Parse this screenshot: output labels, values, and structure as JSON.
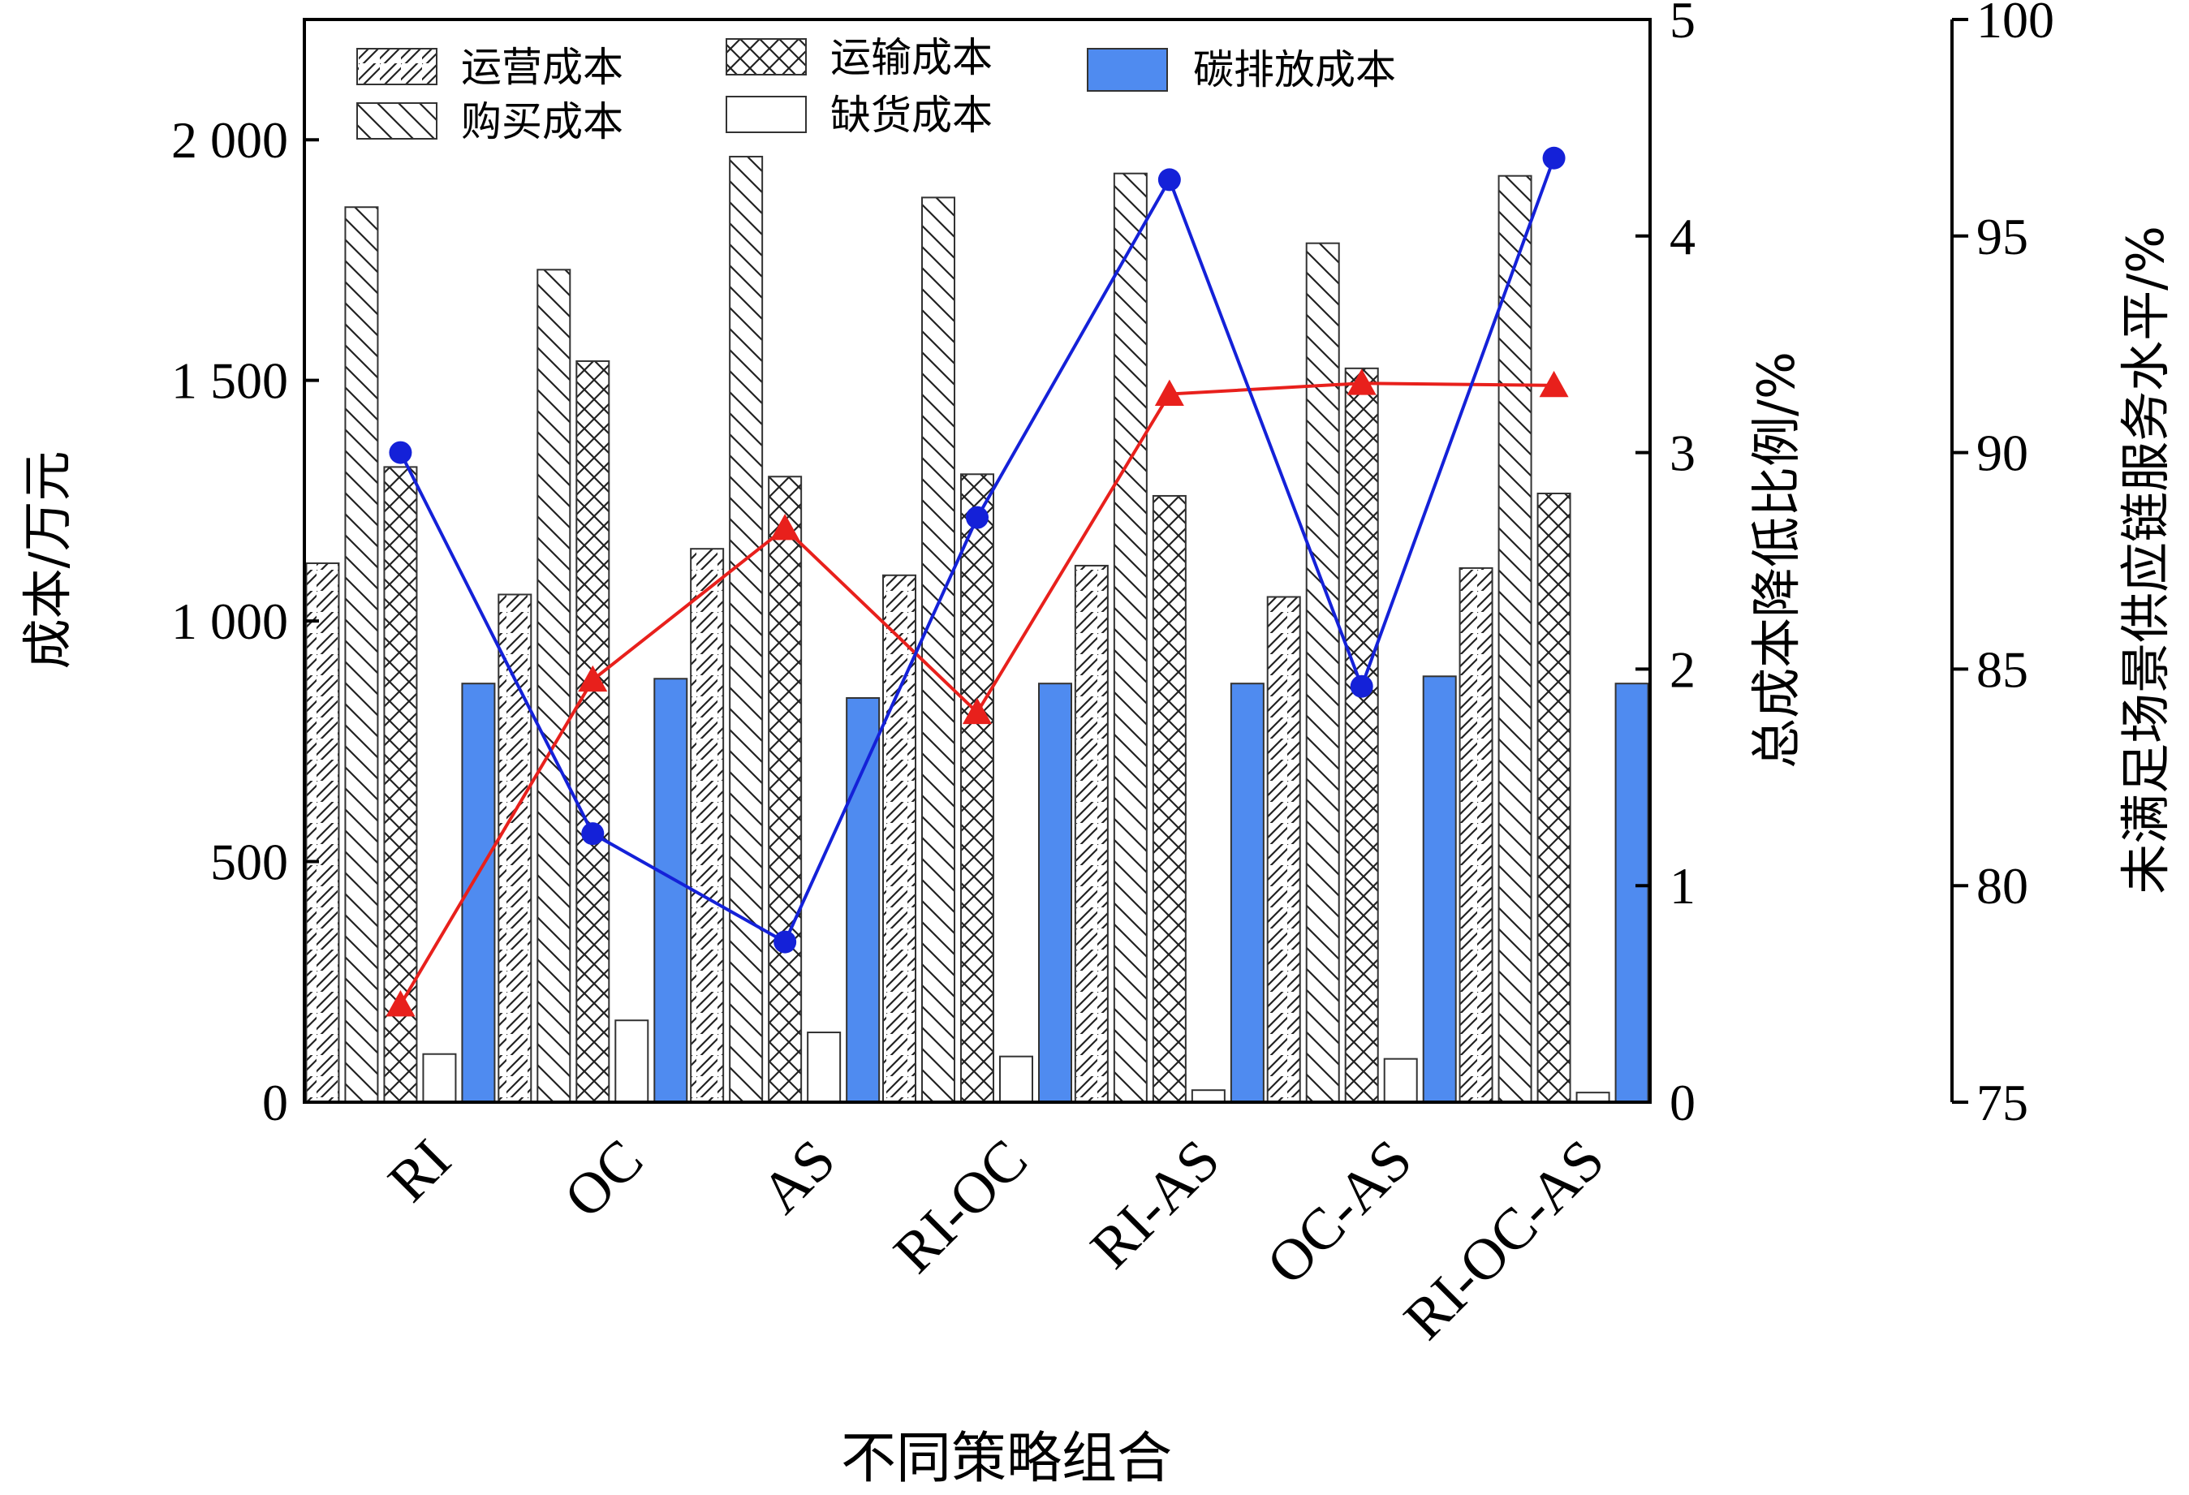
{
  "chart_data": {
    "type": "bar",
    "categories": [
      "RI",
      "OC",
      "AS",
      "RI-OC",
      "RI-AS",
      "OC-AS",
      "RI-OC-AS"
    ],
    "xlabel": "不同策略组合",
    "ylabel": "成本/万元",
    "ylim": [
      0,
      2250
    ],
    "yticks": [
      {
        "value": 0,
        "label": "0"
      },
      {
        "value": 500,
        "label": "500"
      },
      {
        "value": 1000,
        "label": "1 000"
      },
      {
        "value": 1500,
        "label": "1 500"
      },
      {
        "value": 2000,
        "label": "2 000"
      }
    ],
    "y2label": "总成本降低比例/%",
    "y2lim": [
      0,
      5
    ],
    "y2ticks": [
      "0",
      "1",
      "2",
      "3",
      "4",
      "5"
    ],
    "y3label": "未满足场景供应链服务水平/%",
    "y3lim": [
      75,
      100
    ],
    "y3ticks": [
      "75",
      "80",
      "85",
      "90",
      "95",
      "100"
    ],
    "series": [
      {
        "name": "运营成本",
        "pattern": "hatch-fwd",
        "values": [
          1120,
          1055,
          1150,
          1095,
          1115,
          1050,
          1110
        ]
      },
      {
        "name": "购买成本",
        "pattern": "hatch-back",
        "values": [
          1860,
          1730,
          1965,
          1880,
          1930,
          1785,
          1925
        ]
      },
      {
        "name": "运输成本",
        "pattern": "hatch-cross",
        "values": [
          1320,
          1540,
          1300,
          1305,
          1260,
          1525,
          1265
        ]
      },
      {
        "name": "缺货成本",
        "pattern": "none",
        "values": [
          100,
          170,
          145,
          95,
          25,
          90,
          20
        ]
      },
      {
        "name": "碳排放成本",
        "pattern": "solid",
        "color": "#4f8bf0",
        "values": [
          870,
          880,
          840,
          870,
          870,
          885,
          870
        ]
      }
    ],
    "lines": [
      {
        "name": "总成本降低比例",
        "axis": "y2",
        "color": "#e8201c",
        "marker": "triangle",
        "values": [
          0.45,
          1.95,
          2.65,
          1.8,
          3.27,
          3.32,
          3.31
        ]
      },
      {
        "name": "未满足场景供应链服务水平",
        "axis": "y3",
        "color": "#1421d8",
        "marker": "circle",
        "values": [
          90.0,
          81.2,
          78.7,
          88.5,
          96.3,
          84.6,
          96.8
        ]
      }
    ],
    "legend_position": "top"
  }
}
